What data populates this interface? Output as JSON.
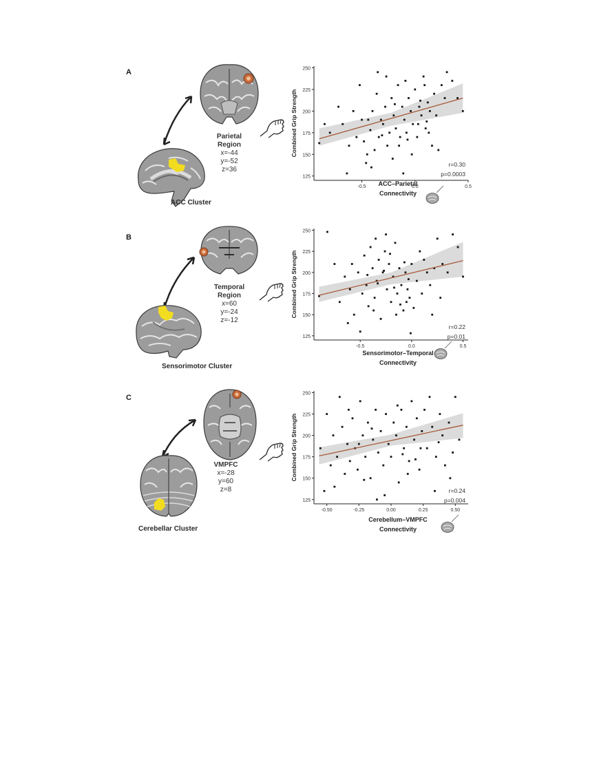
{
  "colors": {
    "point": "#151515",
    "fit_line": "#a65a3a",
    "ci_band": "#cfcfcf",
    "cluster_yellow": "#f2dc1f",
    "region_orange": "#c96a3c"
  },
  "panels": [
    {
      "letter": "A",
      "region": {
        "title_line1": "Parietal",
        "title_line2": "Region",
        "coord_x": "x=-44",
        "coord_y": "y=-52",
        "coord_z": "z=36"
      },
      "cluster_label": "ACC Cluster",
      "icons": {
        "region_brain": "coronal-brain-icon",
        "cluster_brain": "sagittal-brain-icon",
        "hand": "grip-hand-icon"
      },
      "stats": {
        "r": "r=0.30",
        "p": "p=0.0003"
      }
    },
    {
      "letter": "B",
      "region": {
        "title_line1": "Temporal",
        "title_line2": "Region",
        "coord_x": "x=60",
        "coord_y": "y=-24",
        "coord_z": "z=-12"
      },
      "cluster_label": "Sensorimotor Cluster",
      "icons": {
        "region_brain": "coronal-brain-icon",
        "cluster_brain": "lateral-brain-icon",
        "hand": "grip-hand-icon"
      },
      "stats": {
        "r": "r=0.22",
        "p": "p=0.01"
      }
    },
    {
      "letter": "C",
      "region": {
        "title_line1": "VMPFC",
        "title_line2": "",
        "coord_x": "x=-28",
        "coord_y": "y=60",
        "coord_z": "z=8"
      },
      "cluster_label": "Cerebellar Cluster",
      "icons": {
        "region_brain": "axial-brain-icon",
        "cluster_brain": "cerebellum-brain-icon",
        "hand": "grip-hand-icon"
      },
      "stats": {
        "r": "r=0.24",
        "p": "p=0.004"
      }
    }
  ],
  "chart_data": [
    {
      "type": "scatter",
      "ylabel": "Combined Grip Strength",
      "xlabel_line1": "ACC–Parietal",
      "xlabel_line2": "Connectivity",
      "xlim": [
        -0.95,
        0.5
      ],
      "ylim": [
        120,
        252
      ],
      "xticks": [
        -0.5,
        0.0,
        0.5
      ],
      "xtick_labels": [
        "-0.5",
        "0.0",
        "0.5"
      ],
      "yticks": [
        125,
        150,
        175,
        200,
        225,
        250
      ],
      "ytick_labels": [
        "125",
        "150",
        "175",
        "200",
        "225",
        "250"
      ],
      "fit": {
        "x": [
          -0.9,
          0.45
        ],
        "y": [
          168,
          215
        ]
      },
      "ci_low": [
        160,
        183,
        198
      ],
      "ci_high": [
        180,
        198,
        232
      ],
      "points": [
        [
          -0.9,
          163
        ],
        [
          -0.85,
          185
        ],
        [
          -0.8,
          175
        ],
        [
          -0.72,
          205
        ],
        [
          -0.68,
          185
        ],
        [
          -0.62,
          160
        ],
        [
          -0.55,
          170
        ],
        [
          -0.5,
          190
        ],
        [
          -0.48,
          165
        ],
        [
          -0.45,
          150
        ],
        [
          -0.42,
          178
        ],
        [
          -0.4,
          200
        ],
        [
          -0.38,
          155
        ],
        [
          -0.36,
          220
        ],
        [
          -0.34,
          170
        ],
        [
          -0.32,
          190
        ],
        [
          -0.3,
          185
        ],
        [
          -0.28,
          205
        ],
        [
          -0.26,
          160
        ],
        [
          -0.24,
          175
        ],
        [
          -0.22,
          215
        ],
        [
          -0.2,
          195
        ],
        [
          -0.18,
          180
        ],
        [
          -0.16,
          230
        ],
        [
          -0.14,
          170
        ],
        [
          -0.12,
          205
        ],
        [
          -0.1,
          190
        ],
        [
          -0.08,
          175
        ],
        [
          -0.06,
          215
        ],
        [
          -0.04,
          200
        ],
        [
          -0.02,
          185
        ],
        [
          0.0,
          225
        ],
        [
          0.02,
          170
        ],
        [
          0.04,
          205
        ],
        [
          0.06,
          195
        ],
        [
          0.08,
          240
        ],
        [
          0.1,
          180
        ],
        [
          0.12,
          210
        ],
        [
          0.14,
          200
        ],
        [
          0.16,
          160
        ],
        [
          0.18,
          220
        ],
        [
          0.2,
          195
        ],
        [
          0.25,
          230
        ],
        [
          0.3,
          245
        ],
        [
          0.35,
          235
        ],
        [
          0.4,
          215
        ],
        [
          0.45,
          200
        ],
        [
          -0.58,
          200
        ],
        [
          -0.52,
          230
        ],
        [
          -0.46,
          140
        ],
        [
          -0.41,
          135
        ],
        [
          -0.35,
          245
        ],
        [
          -0.27,
          240
        ],
        [
          -0.21,
          145
        ],
        [
          -0.15,
          160
        ],
        [
          -0.09,
          235
        ],
        [
          -0.03,
          150
        ],
        [
          0.03,
          185
        ],
        [
          0.09,
          230
        ],
        [
          0.13,
          175
        ],
        [
          0.22,
          155
        ],
        [
          0.28,
          215
        ],
        [
          -0.44,
          190
        ],
        [
          -0.31,
          172
        ],
        [
          -0.19,
          208
        ],
        [
          -0.07,
          167
        ],
        [
          0.05,
          212
        ],
        [
          0.11,
          188
        ],
        [
          -0.64,
          128
        ],
        [
          -0.11,
          128
        ]
      ]
    },
    {
      "type": "scatter",
      "ylabel": "Combined Grip Strength",
      "xlabel_line1": "Sensorimotor–Temporal",
      "xlabel_line2": "Connectivity",
      "xlim": [
        -0.95,
        0.55
      ],
      "ylim": [
        120,
        252
      ],
      "xticks": [
        -0.5,
        0.0,
        0.5
      ],
      "xtick_labels": [
        "-0.5",
        "0.0",
        "0.5"
      ],
      "yticks": [
        125,
        150,
        175,
        200,
        225,
        250
      ],
      "ytick_labels": [
        "125",
        "150",
        "175",
        "200",
        "225",
        "250"
      ],
      "fit": {
        "x": [
          -0.9,
          0.5
        ],
        "y": [
          173,
          214
        ]
      },
      "ci_low": [
        165,
        186,
        195
      ],
      "ci_high": [
        183,
        200,
        236
      ],
      "points": [
        [
          -0.9,
          172
        ],
        [
          -0.82,
          248
        ],
        [
          -0.75,
          210
        ],
        [
          -0.7,
          165
        ],
        [
          -0.65,
          195
        ],
        [
          -0.6,
          180
        ],
        [
          -0.56,
          150
        ],
        [
          -0.52,
          200
        ],
        [
          -0.48,
          175
        ],
        [
          -0.46,
          220
        ],
        [
          -0.44,
          185
        ],
        [
          -0.42,
          160
        ],
        [
          -0.4,
          230
        ],
        [
          -0.38,
          205
        ],
        [
          -0.36,
          170
        ],
        [
          -0.34,
          190
        ],
        [
          -0.32,
          215
        ],
        [
          -0.3,
          145
        ],
        [
          -0.28,
          200
        ],
        [
          -0.26,
          225
        ],
        [
          -0.24,
          180
        ],
        [
          -0.22,
          210
        ],
        [
          -0.2,
          165
        ],
        [
          -0.18,
          195
        ],
        [
          -0.16,
          235
        ],
        [
          -0.14,
          175
        ],
        [
          -0.12,
          205
        ],
        [
          -0.1,
          185
        ],
        [
          -0.08,
          155
        ],
        [
          -0.06,
          200
        ],
        [
          -0.04,
          180
        ],
        [
          -0.02,
          170
        ],
        [
          0.0,
          210
        ],
        [
          0.05,
          190
        ],
        [
          0.1,
          175
        ],
        [
          0.15,
          200
        ],
        [
          0.2,
          150
        ],
        [
          0.25,
          240
        ],
        [
          0.3,
          210
        ],
        [
          0.35,
          200
        ],
        [
          0.4,
          245
        ],
        [
          0.45,
          230
        ],
        [
          0.5,
          195
        ],
        [
          -0.5,
          130
        ],
        [
          -0.35,
          240
        ],
        [
          -0.25,
          245
        ],
        [
          -0.15,
          150
        ],
        [
          -0.05,
          165
        ],
        [
          0.08,
          225
        ],
        [
          0.18,
          185
        ],
        [
          -0.58,
          210
        ],
        [
          -0.43,
          197
        ],
        [
          -0.33,
          187
        ],
        [
          -0.27,
          202
        ],
        [
          -0.21,
          222
        ],
        [
          -0.11,
          162
        ],
        [
          -0.07,
          212
        ],
        [
          0.02,
          158
        ],
        [
          0.12,
          215
        ],
        [
          0.28,
          170
        ],
        [
          -0.62,
          140
        ],
        [
          -0.37,
          155
        ],
        [
          -0.17,
          182
        ],
        [
          -0.03,
          192
        ],
        [
          0.22,
          205
        ],
        [
          -0.01,
          128
        ]
      ]
    },
    {
      "type": "scatter",
      "ylabel": "Combined Grip Strength",
      "xlabel_line1": "Cerebellum–VMPFC",
      "xlabel_line2": "Connectivity",
      "xlim": [
        -0.6,
        0.6
      ],
      "ylim": [
        120,
        252
      ],
      "xticks": [
        -0.5,
        -0.25,
        0.0,
        0.25,
        0.5
      ],
      "xtick_labels": [
        "-0.50",
        "-0.25",
        "0.00",
        "0.25",
        "0.50"
      ],
      "yticks": [
        125,
        150,
        175,
        200,
        225,
        250
      ],
      "ytick_labels": [
        "125",
        "150",
        "175",
        "200",
        "225",
        "250"
      ],
      "fit": {
        "x": [
          -0.56,
          0.56
        ],
        "y": [
          176,
          212
        ]
      },
      "ci_low": [
        166,
        188,
        197
      ],
      "ci_high": [
        186,
        201,
        226
      ],
      "points": [
        [
          -0.55,
          185
        ],
        [
          -0.52,
          135
        ],
        [
          -0.5,
          225
        ],
        [
          -0.47,
          165
        ],
        [
          -0.45,
          200
        ],
        [
          -0.42,
          175
        ],
        [
          -0.4,
          245
        ],
        [
          -0.38,
          210
        ],
        [
          -0.36,
          155
        ],
        [
          -0.34,
          190
        ],
        [
          -0.32,
          170
        ],
        [
          -0.3,
          220
        ],
        [
          -0.28,
          185
        ],
        [
          -0.26,
          160
        ],
        [
          -0.24,
          240
        ],
        [
          -0.22,
          200
        ],
        [
          -0.2,
          175
        ],
        [
          -0.18,
          215
        ],
        [
          -0.16,
          150
        ],
        [
          -0.14,
          195
        ],
        [
          -0.12,
          230
        ],
        [
          -0.1,
          180
        ],
        [
          -0.08,
          205
        ],
        [
          -0.06,
          165
        ],
        [
          -0.04,
          225
        ],
        [
          -0.02,
          190
        ],
        [
          0.0,
          175
        ],
        [
          0.02,
          215
        ],
        [
          0.04,
          200
        ],
        [
          0.06,
          145
        ],
        [
          0.08,
          230
        ],
        [
          0.1,
          185
        ],
        [
          0.12,
          210
        ],
        [
          0.14,
          170
        ],
        [
          0.16,
          240
        ],
        [
          0.18,
          195
        ],
        [
          0.2,
          220
        ],
        [
          0.22,
          160
        ],
        [
          0.24,
          205
        ],
        [
          0.26,
          230
        ],
        [
          0.28,
          185
        ],
        [
          0.3,
          245
        ],
        [
          0.32,
          210
        ],
        [
          0.35,
          175
        ],
        [
          0.38,
          225
        ],
        [
          0.4,
          200
        ],
        [
          0.42,
          165
        ],
        [
          0.45,
          215
        ],
        [
          0.48,
          180
        ],
        [
          0.5,
          245
        ],
        [
          0.53,
          195
        ],
        [
          -0.44,
          140
        ],
        [
          -0.33,
          230
        ],
        [
          -0.21,
          148
        ],
        [
          -0.11,
          125
        ],
        [
          -0.05,
          130
        ],
        [
          0.05,
          235
        ],
        [
          0.13,
          155
        ],
        [
          0.23,
          185
        ],
        [
          0.34,
          135
        ],
        [
          0.46,
          150
        ],
        [
          -0.25,
          190
        ],
        [
          0.09,
          178
        ],
        [
          -0.15,
          208
        ],
        [
          0.19,
          172
        ],
        [
          0.37,
          192
        ]
      ]
    }
  ]
}
